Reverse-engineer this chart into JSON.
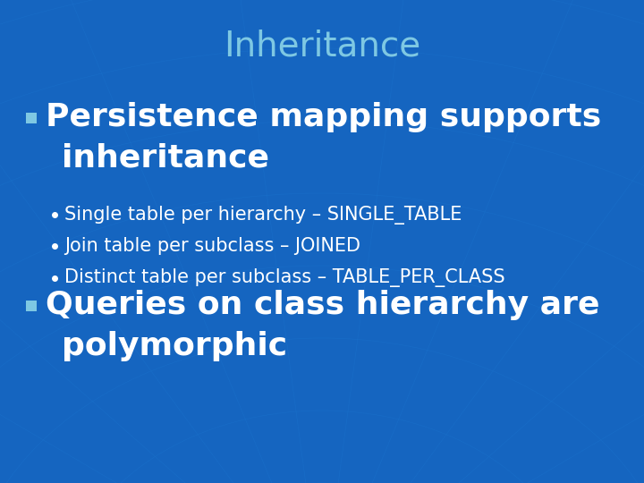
{
  "title": "Inheritance",
  "title_color": "#7ec8e3",
  "title_fontsize": 28,
  "bg_color": "#1565C0",
  "bullet1_line1": "Persistence mapping supports",
  "bullet1_line2": "inheritance",
  "bullet1_fontsize": 26,
  "sub_bullets": [
    "Single table per hierarchy – SINGLE_TABLE",
    "Join table per subclass – JOINED",
    "Distinct table per subclass – TABLE_PER_CLASS"
  ],
  "sub_bullet_fontsize": 15,
  "bullet2_line1": "Queries on class hierarchy are",
  "bullet2_line2": "polymorphic",
  "bullet2_fontsize": 26,
  "text_color": "#ffffff",
  "bullet_marker_color": "#7ec8e3",
  "grid_color": "#1a72cc",
  "font_family": "DejaVu Sans"
}
